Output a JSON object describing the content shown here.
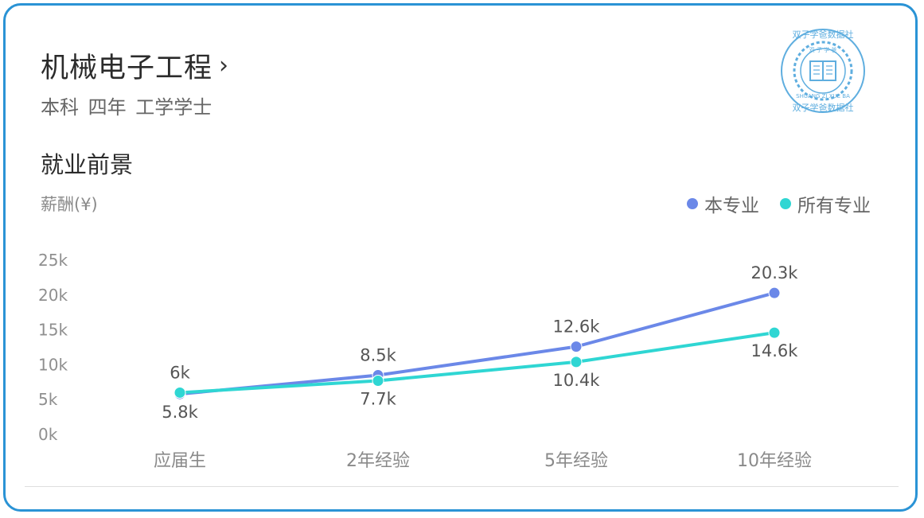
{
  "header": {
    "title": "机械电子工程",
    "chevron": "›",
    "subtitle": "本科 四年 工学学士"
  },
  "section": {
    "title": "就业前景"
  },
  "colors": {
    "series_major": "#6b88e8",
    "series_all": "#2fd6d3",
    "frame": "#2a93d5",
    "watermark": "#2a93d5"
  },
  "chart_data": {
    "type": "line",
    "ylabel": "薪酬(¥)",
    "categories": [
      "应届生",
      "2年经验",
      "5年经验",
      "10年经验"
    ],
    "ylim": [
      0,
      25000
    ],
    "yticks": [
      {
        "value": 0,
        "label": "0k"
      },
      {
        "value": 5000,
        "label": "5k"
      },
      {
        "value": 10000,
        "label": "10k"
      },
      {
        "value": 15000,
        "label": "15k"
      },
      {
        "value": 20000,
        "label": "20k"
      },
      {
        "value": 25000,
        "label": "25k"
      }
    ],
    "legend_position": "top-right",
    "grid": false,
    "series": [
      {
        "name": "本专业",
        "color": "#6b88e8",
        "values": [
          5800,
          8500,
          12600,
          20300
        ],
        "labels": [
          "5.8k",
          "8.5k",
          "12.6k",
          "20.3k"
        ]
      },
      {
        "name": "所有专业",
        "color": "#2fd6d3",
        "values": [
          6000,
          7700,
          10400,
          14600
        ],
        "labels": [
          "6k",
          "7.7k",
          "10.4k",
          "14.6k"
        ]
      }
    ]
  },
  "watermark": {
    "icon": "publisher-seal-icon",
    "text_top": "双子学爸数据社",
    "text_mid": "双 子 学 爸",
    "text_bottom": "SHUANG ZI XUE BA",
    "text_bottom2": "双子学爸数据社"
  }
}
